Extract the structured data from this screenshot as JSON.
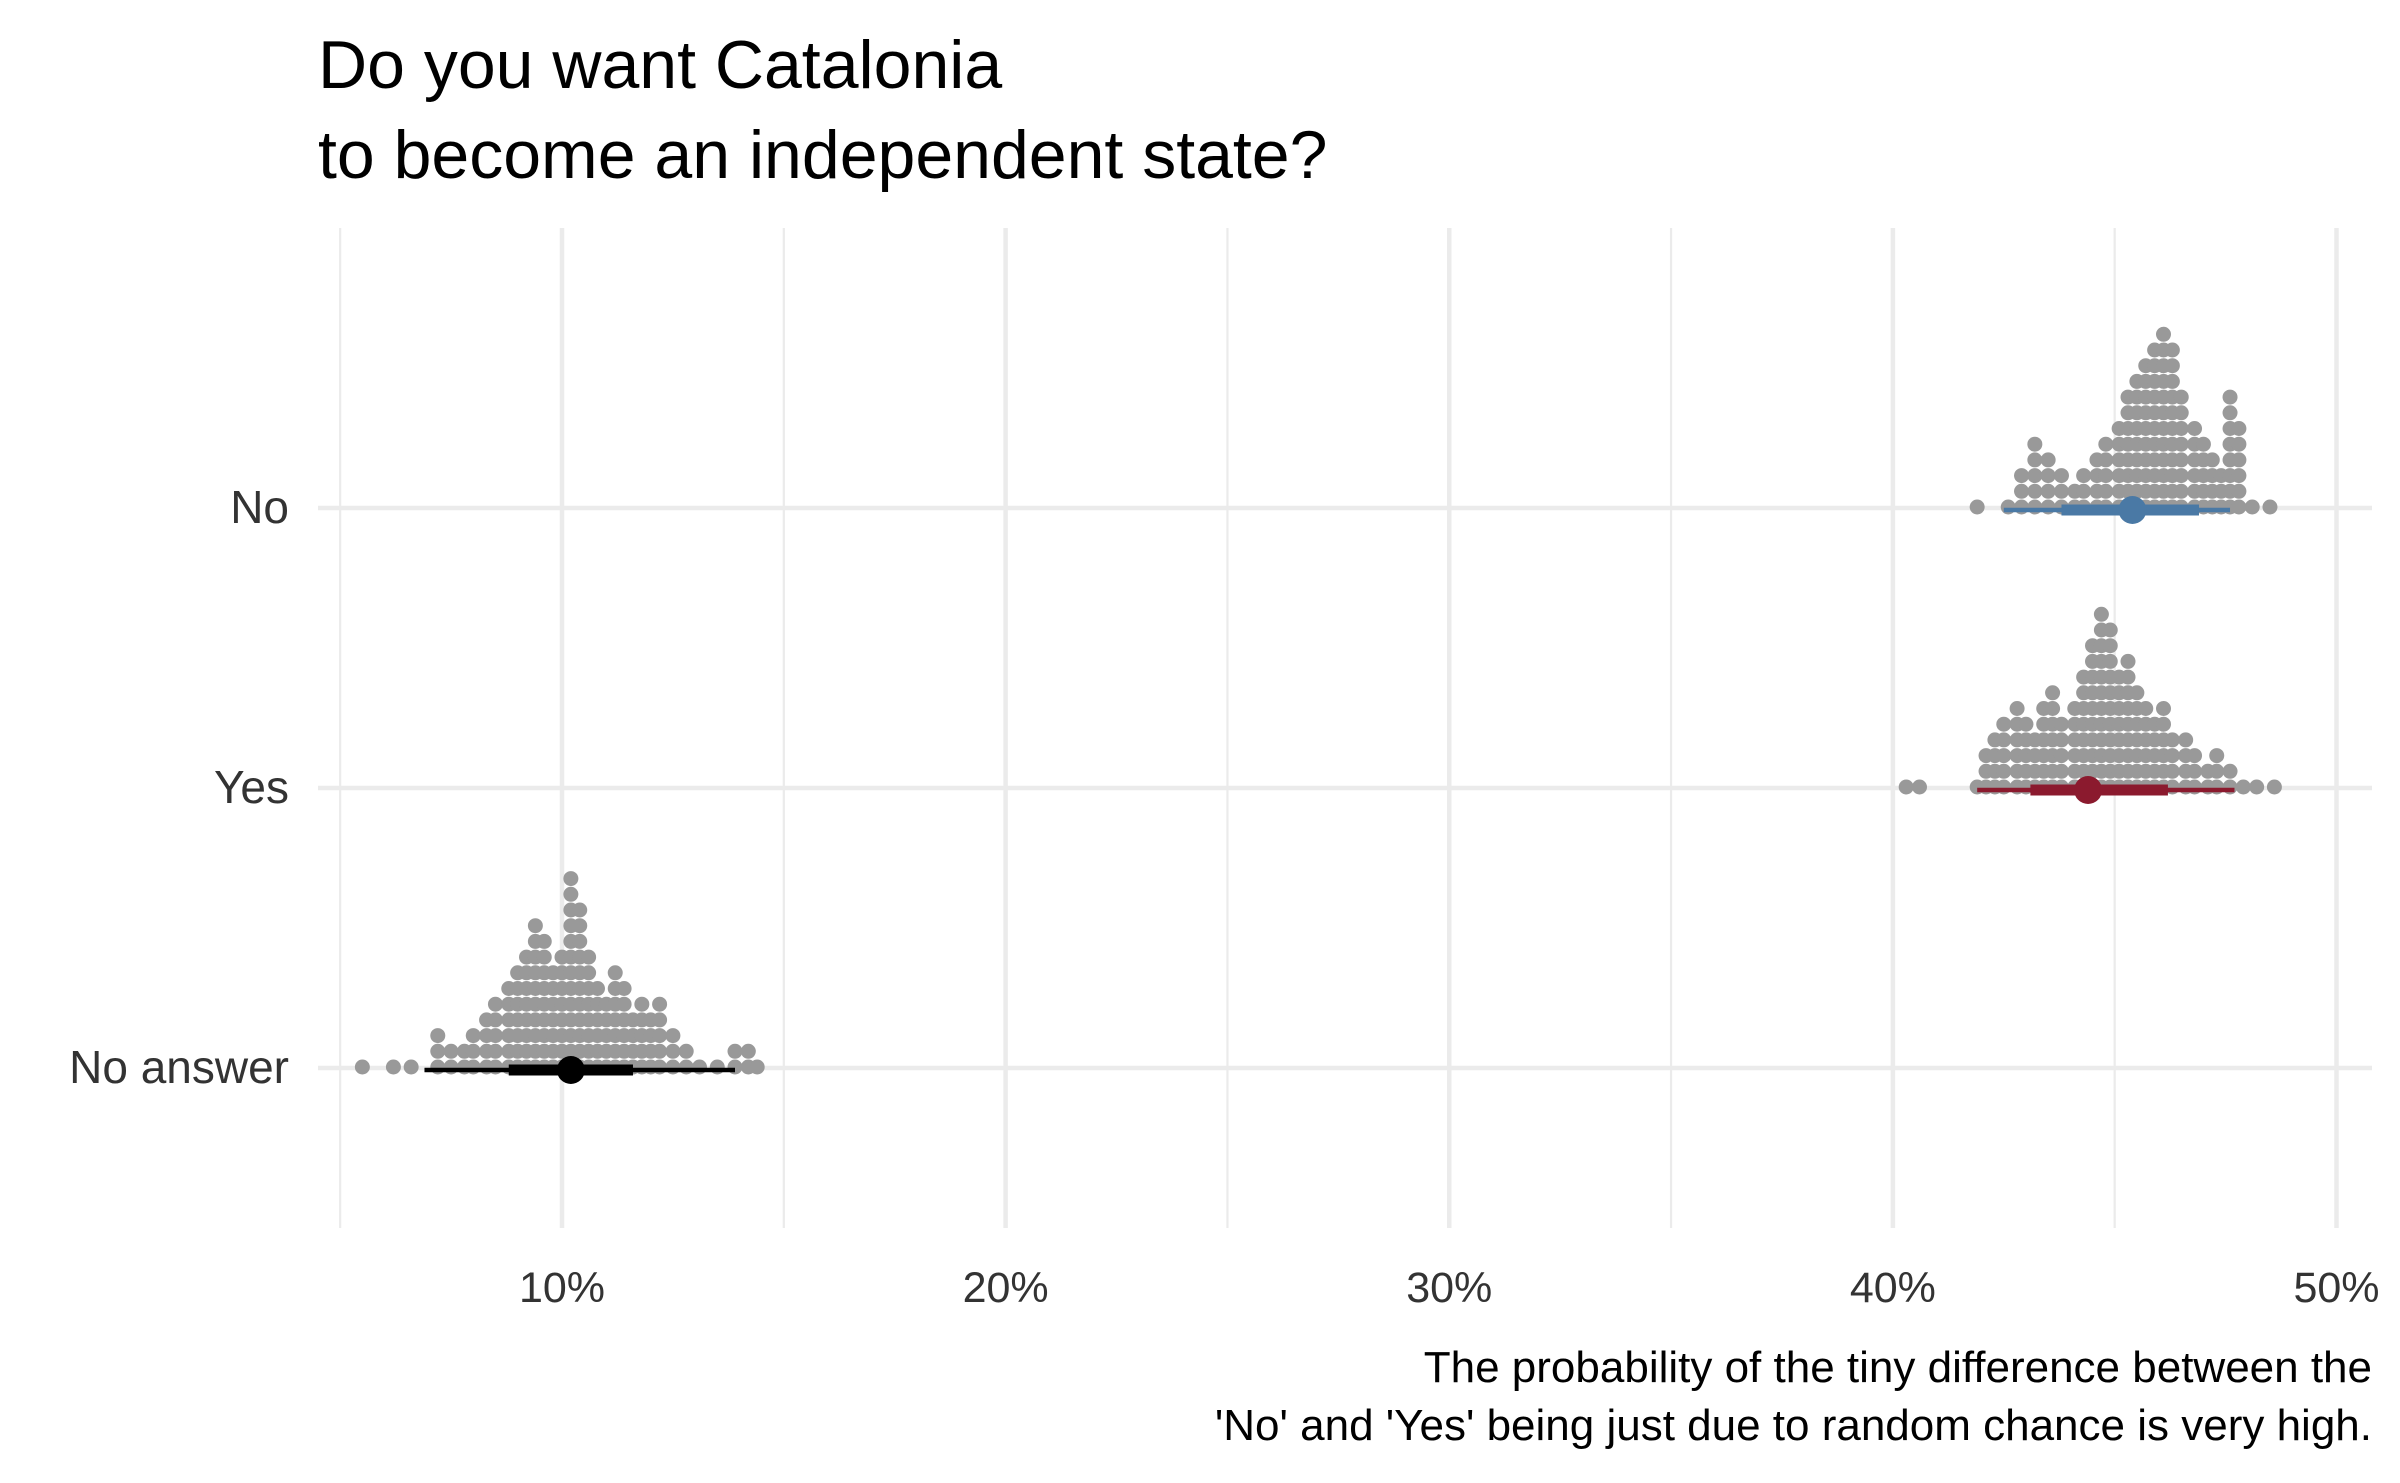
{
  "chart_data": {
    "type": "dotplot",
    "title": [
      "Do you want Catalonia",
      "to become an independent state?"
    ],
    "caption": [
      "The probability of the tiny difference between the",
      "'No' and 'Yes' being just due to random chance is very high."
    ],
    "xlabel": "",
    "ylabel": "",
    "xlim": [
      0.045,
      0.508
    ],
    "x_ticks": [
      0.1,
      0.2,
      0.3,
      0.4,
      0.5
    ],
    "x_tick_labels": [
      "10%",
      "20%",
      "30%",
      "40%",
      "50%"
    ],
    "x_minor_ticks": [
      0.05,
      0.15,
      0.25,
      0.35,
      0.45
    ],
    "grid": true,
    "legend": "none",
    "dot_color": "#999999",
    "categories": [
      "No",
      "Yes",
      "No answer"
    ],
    "series": [
      {
        "category": "No",
        "color": "#4a79a5",
        "median": 0.454,
        "interval_66": [
          0.438,
          0.469
        ],
        "interval_95": [
          0.425,
          0.476
        ],
        "dot_stacks": [
          [
            0.419,
            1
          ],
          [
            0.426,
            1
          ],
          [
            0.429,
            3
          ],
          [
            0.432,
            5
          ],
          [
            0.435,
            4
          ],
          [
            0.438,
            3
          ],
          [
            0.441,
            2
          ],
          [
            0.443,
            3
          ],
          [
            0.446,
            4
          ],
          [
            0.448,
            5
          ],
          [
            0.451,
            6
          ],
          [
            0.453,
            8
          ],
          [
            0.455,
            9
          ],
          [
            0.457,
            10
          ],
          [
            0.459,
            11
          ],
          [
            0.461,
            12
          ],
          [
            0.463,
            11
          ],
          [
            0.465,
            8
          ],
          [
            0.468,
            6
          ],
          [
            0.47,
            5
          ],
          [
            0.472,
            4
          ],
          [
            0.474,
            3
          ],
          [
            0.476,
            8
          ],
          [
            0.478,
            6
          ],
          [
            0.481,
            1
          ],
          [
            0.485,
            1
          ]
        ]
      },
      {
        "category": "Yes",
        "color": "#8b1a2e",
        "median": 0.444,
        "interval_66": [
          0.431,
          0.462
        ],
        "interval_95": [
          0.419,
          0.477
        ],
        "dot_stacks": [
          [
            0.403,
            1
          ],
          [
            0.406,
            1
          ],
          [
            0.419,
            1
          ],
          [
            0.421,
            3
          ],
          [
            0.423,
            4
          ],
          [
            0.425,
            5
          ],
          [
            0.428,
            6
          ],
          [
            0.43,
            5
          ],
          [
            0.432,
            4
          ],
          [
            0.434,
            6
          ],
          [
            0.436,
            7
          ],
          [
            0.438,
            5
          ],
          [
            0.441,
            6
          ],
          [
            0.443,
            8
          ],
          [
            0.445,
            10
          ],
          [
            0.447,
            12
          ],
          [
            0.449,
            11
          ],
          [
            0.451,
            8
          ],
          [
            0.453,
            9
          ],
          [
            0.455,
            7
          ],
          [
            0.457,
            6
          ],
          [
            0.459,
            5
          ],
          [
            0.461,
            6
          ],
          [
            0.463,
            4
          ],
          [
            0.466,
            4
          ],
          [
            0.468,
            3
          ],
          [
            0.471,
            2
          ],
          [
            0.473,
            3
          ],
          [
            0.476,
            2
          ],
          [
            0.479,
            1
          ],
          [
            0.482,
            1
          ],
          [
            0.486,
            1
          ]
        ]
      },
      {
        "category": "No answer",
        "color": "#000000",
        "median": 0.102,
        "interval_66": [
          0.088,
          0.116
        ],
        "interval_95": [
          0.069,
          0.139
        ],
        "dot_stacks": [
          [
            0.055,
            1
          ],
          [
            0.062,
            1
          ],
          [
            0.066,
            1
          ],
          [
            0.072,
            3
          ],
          [
            0.075,
            2
          ],
          [
            0.078,
            2
          ],
          [
            0.08,
            3
          ],
          [
            0.083,
            4
          ],
          [
            0.085,
            5
          ],
          [
            0.088,
            6
          ],
          [
            0.09,
            7
          ],
          [
            0.092,
            8
          ],
          [
            0.094,
            10
          ],
          [
            0.096,
            9
          ],
          [
            0.098,
            7
          ],
          [
            0.1,
            8
          ],
          [
            0.102,
            13
          ],
          [
            0.104,
            11
          ],
          [
            0.106,
            8
          ],
          [
            0.108,
            6
          ],
          [
            0.11,
            5
          ],
          [
            0.112,
            7
          ],
          [
            0.114,
            6
          ],
          [
            0.116,
            4
          ],
          [
            0.118,
            5
          ],
          [
            0.12,
            4
          ],
          [
            0.122,
            5
          ],
          [
            0.125,
            3
          ],
          [
            0.128,
            2
          ],
          [
            0.131,
            1
          ],
          [
            0.135,
            1
          ],
          [
            0.139,
            2
          ],
          [
            0.142,
            2
          ],
          [
            0.144,
            1
          ]
        ]
      }
    ]
  }
}
